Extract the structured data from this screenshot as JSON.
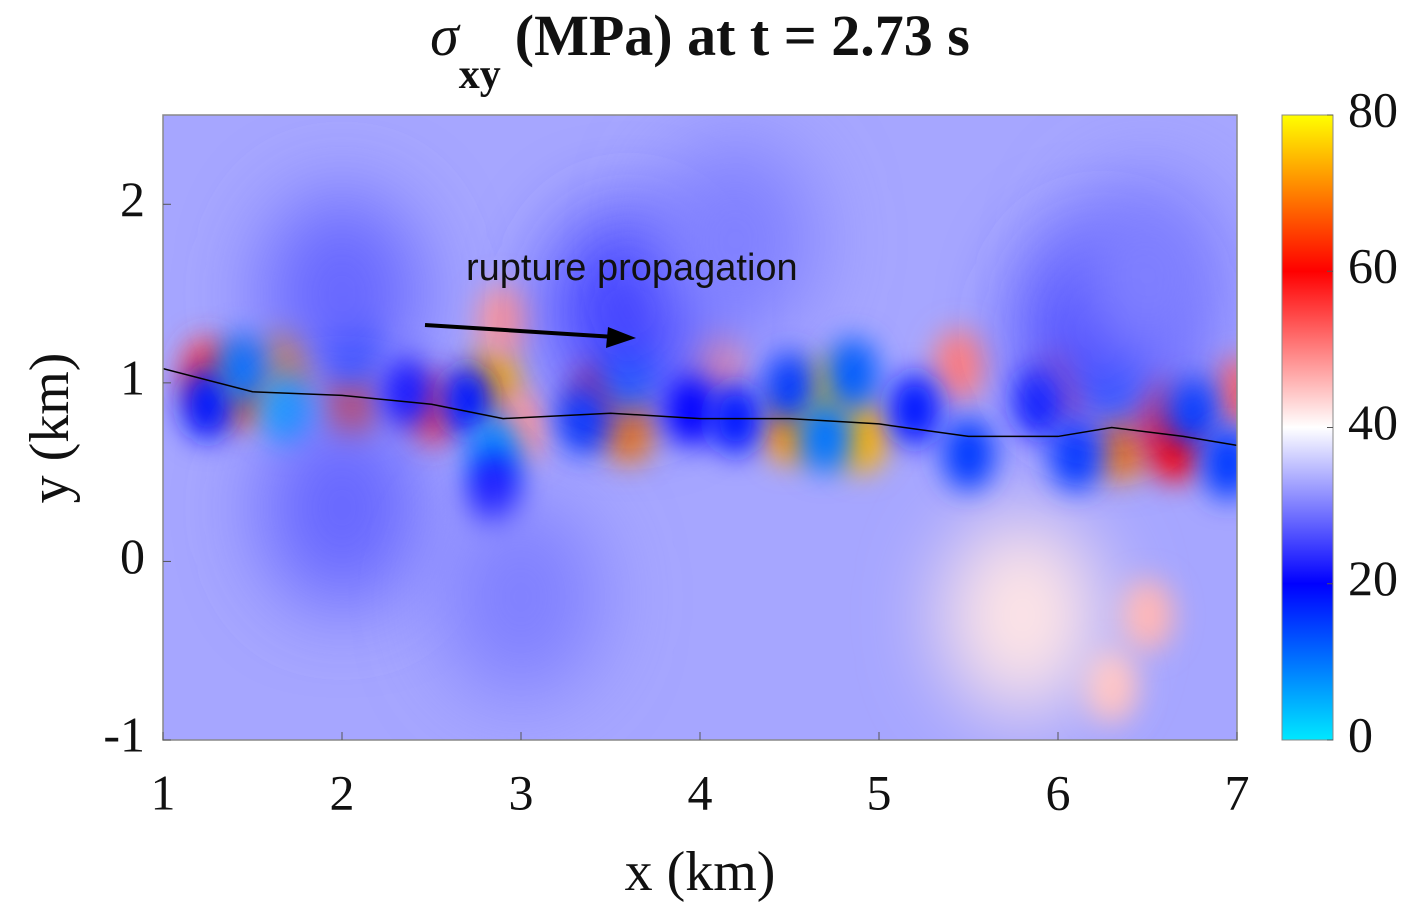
{
  "chart_data": {
    "type": "heatmap",
    "title_symbol": "σ",
    "title_subscript": "xy",
    "title_rest": "(MPa) at t = 2.73 s",
    "xlabel": "x (km)",
    "ylabel": "y (km)",
    "annotation": "rupture propagation",
    "xlim": [
      1,
      7
    ],
    "xticks": [
      1,
      2,
      3,
      4,
      5,
      6,
      7
    ],
    "ylim": [
      -1,
      2.5
    ],
    "yticks": [
      -1,
      0,
      1,
      2
    ],
    "clim": [
      0,
      80
    ],
    "cticks": [
      0,
      20,
      40,
      60,
      80
    ],
    "colormap": [
      "#00e8ff",
      "#0000ff",
      "#ffffff",
      "#ff0000",
      "#ffff00"
    ],
    "base_value": 33,
    "x": [
      1.25,
      1.45,
      1.7,
      2.05,
      2.85,
      2.5,
      3.45,
      3.6,
      4.1,
      4.5,
      4.7,
      4.9,
      5.45,
      6.05,
      6.35,
      6.55,
      6.65,
      7.0,
      2.9,
      3.0,
      6.5,
      6.3,
      5.8,
      1.25,
      1.45,
      1.7,
      2.05,
      2.35,
      2.7,
      2.85,
      2.85,
      3.35,
      3.6,
      3.6,
      3.95,
      4.2,
      4.5,
      4.7,
      4.85,
      5.2,
      5.5,
      5.9,
      6.1,
      6.3,
      6.25,
      6.75,
      6.95,
      2.0,
      4.2,
      2.0,
      3.0,
      6.5
    ],
    "y": [
      1.05,
      0.95,
      1.1,
      0.88,
      1.0,
      0.85,
      0.93,
      0.75,
      1.1,
      0.75,
      0.93,
      0.7,
      1.1,
      1.0,
      0.65,
      0.85,
      0.65,
      0.95,
      1.35,
      0.75,
      -0.3,
      -0.7,
      -0.3,
      0.88,
      1.08,
      0.85,
      1.2,
      0.95,
      0.9,
      0.6,
      0.4,
      0.8,
      1.08,
      1.4,
      0.85,
      0.8,
      0.98,
      0.7,
      1.05,
      0.85,
      0.6,
      0.9,
      0.6,
      1.05,
      1.3,
      0.85,
      0.55,
      1.5,
      1.8,
      0.3,
      -0.2,
      1.6
    ],
    "values": [
      55,
      68,
      72,
      65,
      74,
      55,
      62,
      70,
      48,
      72,
      76,
      74,
      50,
      52,
      70,
      55,
      60,
      52,
      48,
      48,
      46,
      45,
      42,
      18,
      10,
      5,
      15,
      20,
      18,
      8,
      20,
      15,
      8,
      25,
      20,
      18,
      15,
      10,
      12,
      18,
      15,
      18,
      15,
      10,
      25,
      15,
      15,
      28,
      30,
      28,
      30,
      30
    ],
    "fault": {
      "x": [
        1,
        1.5,
        2,
        2.5,
        2.9,
        3.5,
        4,
        4.5,
        5,
        5.5,
        6,
        6.3,
        6.7,
        7
      ],
      "y": [
        1.08,
        0.95,
        0.93,
        0.88,
        0.8,
        0.83,
        0.8,
        0.8,
        0.77,
        0.7,
        0.7,
        0.75,
        0.7,
        0.65
      ]
    }
  }
}
